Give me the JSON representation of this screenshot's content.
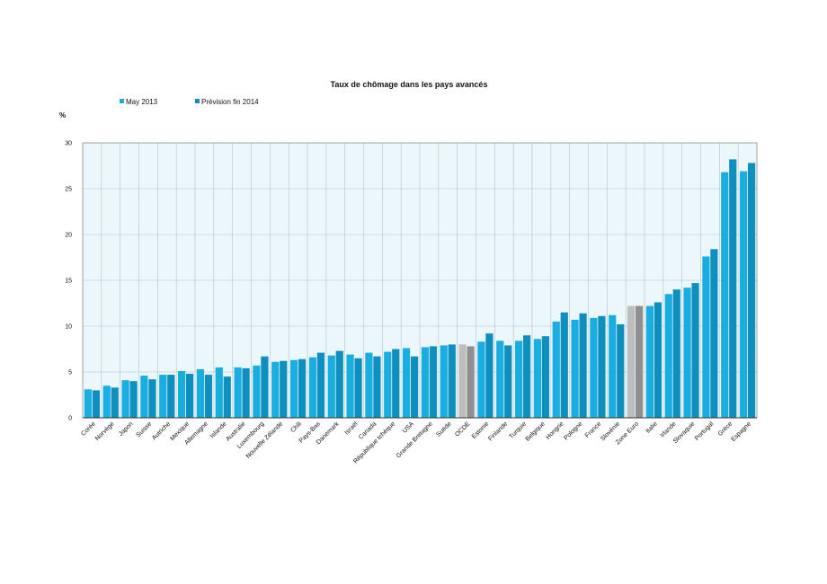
{
  "chart_data": {
    "type": "bar",
    "title": "Taux de chômage dans les pays avancés",
    "ylabel": "%",
    "xlabel": "",
    "ylim": [
      0,
      30
    ],
    "yticks": [
      0,
      5,
      10,
      15,
      20,
      25,
      30
    ],
    "grid": true,
    "legend_position": "top-left",
    "categories": [
      "Corée",
      "Norvège",
      "Japon",
      "Suisse",
      "Autriche",
      "Mexique",
      "Allemagne",
      "Islande",
      "Australie",
      "Luxembourg",
      "Nouvelle Zélande",
      "Chili",
      "Pays-Bas",
      "Danemark",
      "Israël",
      "Canada",
      "République tchèque",
      "USA",
      "Grande Bretagne",
      "Suède",
      "OCDE",
      "Estonie",
      "Finlande",
      "Turquie",
      "Belgique",
      "Hongrie",
      "Pologne",
      "France",
      "Slovénie",
      "Zone Euro",
      "Italie",
      "Irlande",
      "Slovaquie",
      "Portugal",
      "Grèce",
      "Espagne"
    ],
    "highlight_categories": [
      "OCDE",
      "Zone Euro"
    ],
    "series": [
      {
        "name": "May 2013",
        "color": "#1aade0",
        "highlight_color": "#bdbdbd",
        "values": [
          3.1,
          3.5,
          4.1,
          4.6,
          4.7,
          5.1,
          5.3,
          5.5,
          5.5,
          5.7,
          6.1,
          6.3,
          6.6,
          6.8,
          6.9,
          7.1,
          7.2,
          7.6,
          7.7,
          7.9,
          8.0,
          8.3,
          8.4,
          8.4,
          8.6,
          10.5,
          10.7,
          10.9,
          11.2,
          12.2,
          12.2,
          13.5,
          14.2,
          17.6,
          26.8,
          26.9
        ]
      },
      {
        "name": "Prévision fin 2014",
        "color": "#0e8fbe",
        "highlight_color": "#8f8f8f",
        "values": [
          3.0,
          3.3,
          4.0,
          4.2,
          4.7,
          4.8,
          4.7,
          4.5,
          5.4,
          6.7,
          6.2,
          6.4,
          7.1,
          7.3,
          6.5,
          6.7,
          7.5,
          6.7,
          7.8,
          8.0,
          7.8,
          9.2,
          7.9,
          9.0,
          8.9,
          11.5,
          11.4,
          11.1,
          10.2,
          12.2,
          12.6,
          14.0,
          14.7,
          18.4,
          28.2,
          27.8
        ]
      }
    ]
  }
}
